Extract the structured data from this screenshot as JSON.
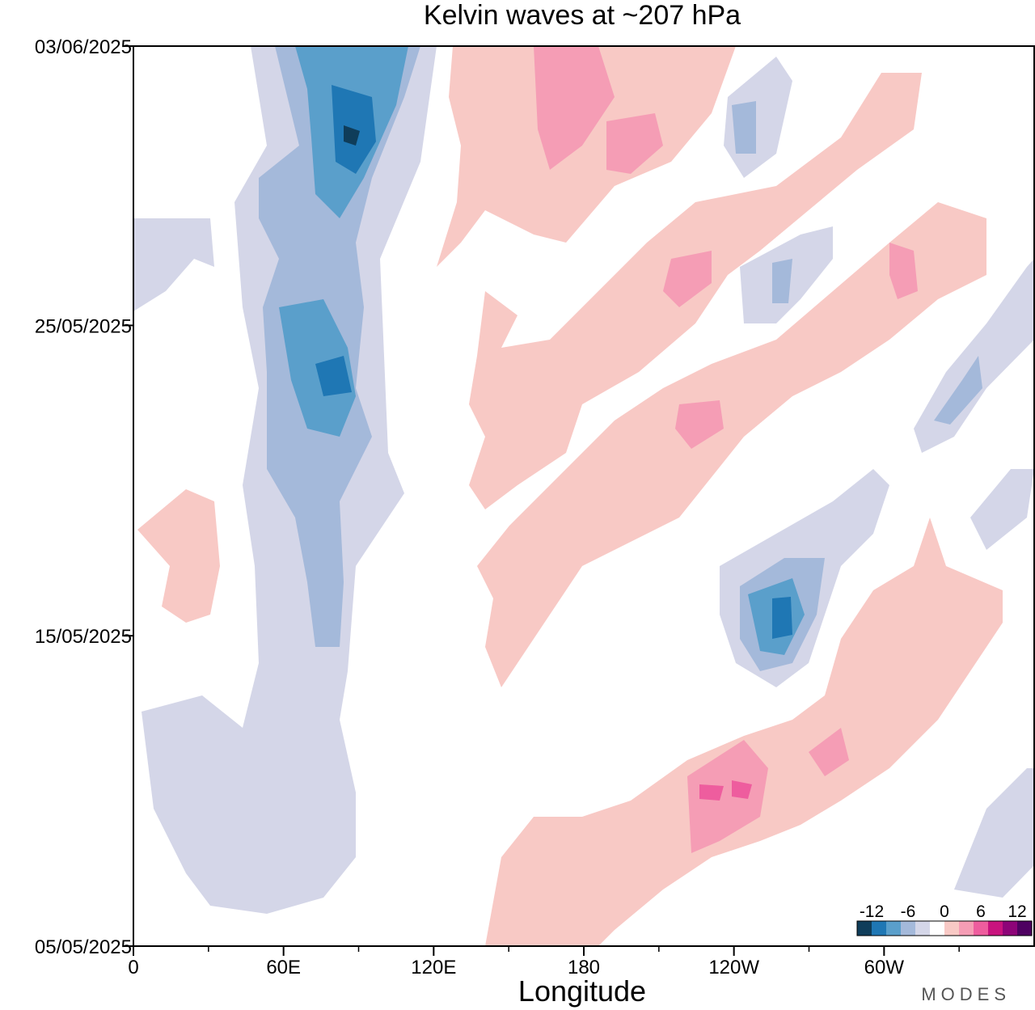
{
  "chart_data": {
    "type": "heatmap",
    "title": "Kelvin waves at ~207 hPa",
    "xlabel": "Longitude",
    "ylabel": "",
    "x_ticks": [
      {
        "lon": 0,
        "label": "0"
      },
      {
        "lon": 60,
        "label": "60E"
      },
      {
        "lon": 120,
        "label": "120E"
      },
      {
        "lon": 180,
        "label": "180"
      },
      {
        "lon": 240,
        "label": "120W"
      },
      {
        "lon": 300,
        "label": "60W"
      }
    ],
    "x_minor_ticks": [
      30,
      90,
      150,
      210,
      270,
      330
    ],
    "xlim": [
      0,
      360
    ],
    "y_ticks": [
      "03/06/2025",
      "25/05/2025",
      "15/05/2025",
      "05/05/2025"
    ],
    "ylim": [
      "05/05/2025",
      "03/06/2025"
    ],
    "colorbar": {
      "labels": [
        "-12",
        "-6",
        "0",
        "6",
        "12"
      ],
      "colors": [
        "#0f3d5a",
        "#1f77b4",
        "#5a9fcb",
        "#a4b9da",
        "#d4d6e8",
        "#ffffff",
        "#f8c9c5",
        "#f59db5",
        "#ee5d9e",
        "#c8137e",
        "#8d0478",
        "#4e0161"
      ]
    },
    "levels_note": "anomaly contours",
    "features": [
      {
        "name": "negative-band-west",
        "sign": "negative",
        "lon_start": 60,
        "lon_end": 95
      },
      {
        "name": "positive-band-1",
        "sign": "positive",
        "lon_start": 140,
        "lon_end": 330
      },
      {
        "name": "negative-blob-120W",
        "sign": "negative",
        "lon": 250
      },
      {
        "name": "positive-blob-150W",
        "sign": "positive",
        "lon": 215
      }
    ]
  },
  "brand": "MODES"
}
